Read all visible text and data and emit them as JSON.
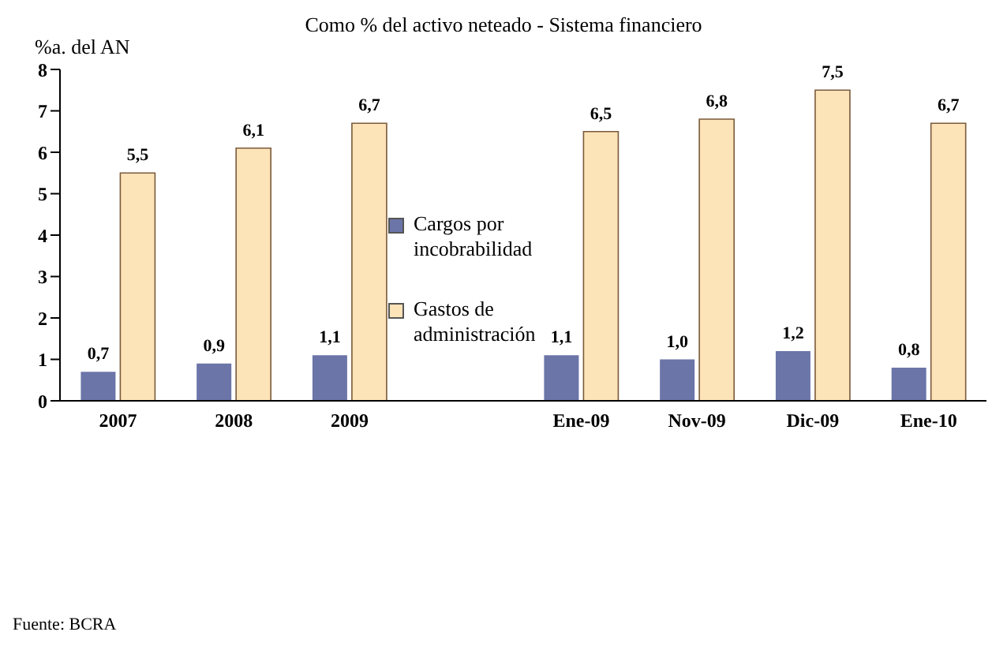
{
  "chart_data": {
    "type": "bar",
    "title": "Como % del activo neteado - Sistema financiero",
    "ylabel": "%a. del AN",
    "categories": [
      "2007",
      "2008",
      "2009",
      null,
      "Ene-09",
      "Nov-09",
      "Dic-09",
      "Ene-10"
    ],
    "series": [
      {
        "name": "Cargos por incobrabilidad",
        "color": "#6b75a8",
        "values": [
          0.7,
          0.9,
          1.1,
          null,
          1.1,
          1.0,
          1.2,
          0.8
        ],
        "value_labels": [
          "0,7",
          "0,9",
          "1,1",
          null,
          "1,1",
          "1,0",
          "1,2",
          "0,8"
        ]
      },
      {
        "name": "Gastos de administración",
        "color": "#fde3b8",
        "values": [
          5.5,
          6.1,
          6.7,
          null,
          6.5,
          6.8,
          7.5,
          6.7
        ],
        "value_labels": [
          "5,5",
          "6,1",
          "6,7",
          null,
          "6,5",
          "6,8",
          "7,5",
          "6,7"
        ]
      }
    ],
    "ylim": [
      0,
      8
    ],
    "yticks": [
      0,
      1,
      2,
      3,
      4,
      5,
      6,
      7,
      8
    ],
    "grid": false,
    "legend": "center",
    "annotations": [
      "Fuente: BCRA"
    ]
  }
}
